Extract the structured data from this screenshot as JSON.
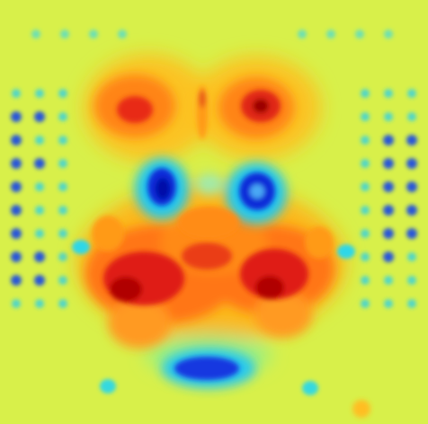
{
  "image": {
    "kind": "heatmap-visualization",
    "colormap": "jet",
    "colors": {
      "background": "#d8f04a",
      "low": "#0a1ec8",
      "mid_low": "#19c8e6",
      "mid": "#d8f04a",
      "mid_high": "#ff9a18",
      "high": "#d71414",
      "extreme": "#9b0000"
    }
  }
}
